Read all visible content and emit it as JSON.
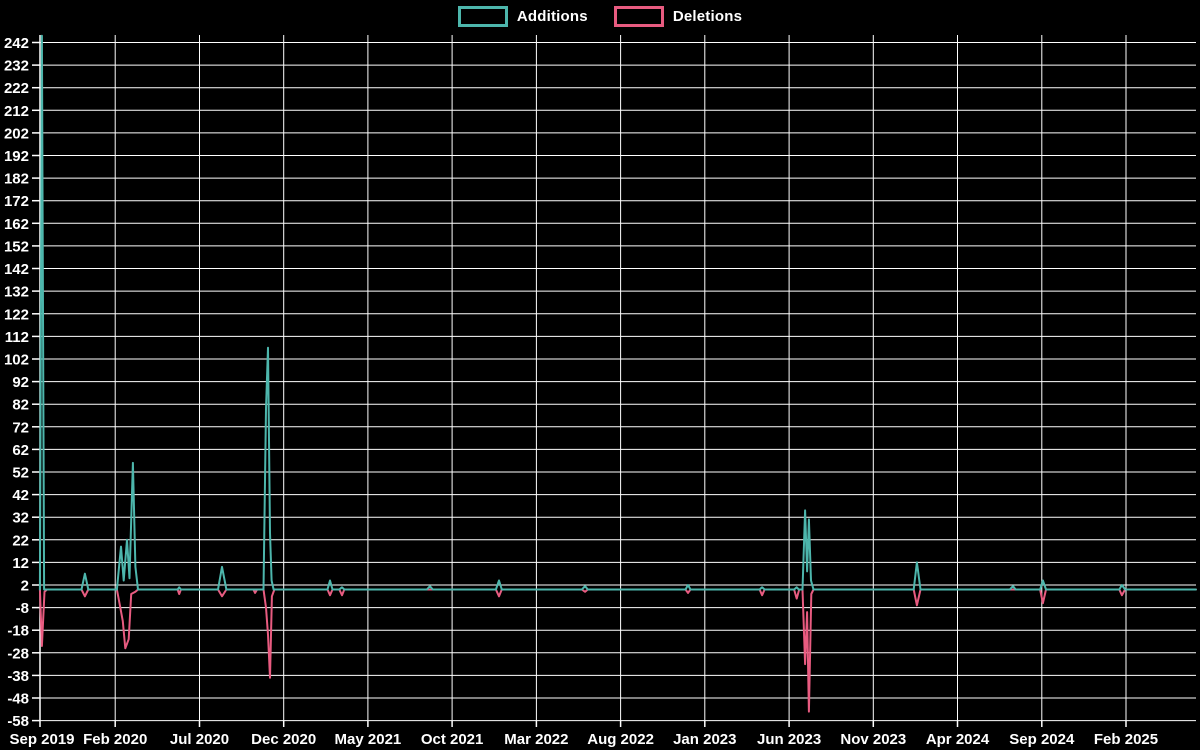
{
  "chart_data": {
    "type": "line",
    "title": "",
    "legend": [
      {
        "label": "Additions",
        "color": "#4db6ac"
      },
      {
        "label": "Deletions",
        "color": "#e85b80"
      }
    ],
    "colors": {
      "background": "#000000",
      "grid": "#ffffff",
      "text": "#ffffff",
      "additions": "#4db6ac",
      "deletions": "#e85b80"
    },
    "grid": true,
    "legend_position": "top-center",
    "ylim": [
      -58,
      245
    ],
    "y_ticks": [
      242,
      232,
      222,
      212,
      202,
      192,
      182,
      172,
      162,
      152,
      142,
      132,
      122,
      112,
      102,
      92,
      82,
      72,
      62,
      52,
      42,
      32,
      22,
      12,
      2,
      -8,
      -18,
      -28,
      -38,
      -48,
      -58
    ],
    "x_unit": "months_since_first_tick",
    "x_tick_interval_months": 5,
    "x_tick_labels": [
      "Sep 2019",
      "Feb 2020",
      "Jul 2020",
      "Dec 2020",
      "May 2021",
      "Oct 2021",
      "Mar 2022",
      "Aug 2022",
      "Jan 2023",
      "Jun 2023",
      "Nov 2023",
      "Apr 2024",
      "Sep 2024",
      "Feb 2025"
    ],
    "series": [
      {
        "name": "Additions",
        "color": "#4db6ac",
        "points": [
          [
            0.53,
            0
          ],
          [
            0.65,
            245
          ],
          [
            0.78,
            0
          ],
          [
            3.0,
            0
          ],
          [
            3.2,
            7
          ],
          [
            3.4,
            0
          ],
          [
            5.1,
            0
          ],
          [
            5.34,
            19
          ],
          [
            5.5,
            4
          ],
          [
            5.7,
            22
          ],
          [
            5.85,
            5
          ],
          [
            6.05,
            56
          ],
          [
            6.2,
            10
          ],
          [
            6.35,
            0
          ],
          [
            8.7,
            0
          ],
          [
            8.8,
            1
          ],
          [
            8.9,
            0
          ],
          [
            11.1,
            0
          ],
          [
            11.34,
            10
          ],
          [
            11.6,
            0
          ],
          [
            13.8,
            0
          ],
          [
            13.95,
            80
          ],
          [
            14.07,
            107
          ],
          [
            14.19,
            25
          ],
          [
            14.28,
            4
          ],
          [
            14.4,
            0
          ],
          [
            17.6,
            0
          ],
          [
            17.75,
            4
          ],
          [
            17.9,
            0
          ],
          [
            18.3,
            0
          ],
          [
            18.46,
            1
          ],
          [
            18.6,
            0
          ],
          [
            23.5,
            0
          ],
          [
            23.68,
            1.5
          ],
          [
            23.85,
            0
          ],
          [
            27.6,
            0
          ],
          [
            27.78,
            4
          ],
          [
            27.95,
            0
          ],
          [
            32.7,
            0
          ],
          [
            32.89,
            1.5
          ],
          [
            33.05,
            0
          ],
          [
            38.85,
            0
          ],
          [
            39.0,
            2
          ],
          [
            39.15,
            0
          ],
          [
            43.25,
            0
          ],
          [
            43.4,
            1
          ],
          [
            43.55,
            0
          ],
          [
            45.3,
            0
          ],
          [
            45.45,
            1
          ],
          [
            45.58,
            0
          ],
          [
            45.8,
            0
          ],
          [
            45.95,
            35
          ],
          [
            46.07,
            8
          ],
          [
            46.18,
            31
          ],
          [
            46.3,
            4
          ],
          [
            46.45,
            0
          ],
          [
            52.4,
            0
          ],
          [
            52.59,
            12
          ],
          [
            52.8,
            0
          ],
          [
            58.1,
            0
          ],
          [
            58.29,
            1.5
          ],
          [
            58.45,
            0
          ],
          [
            59.9,
            0
          ],
          [
            60.07,
            4
          ],
          [
            60.25,
            0
          ],
          [
            64.6,
            0
          ],
          [
            64.76,
            2
          ],
          [
            64.95,
            0
          ],
          [
            69.15,
            0
          ]
        ]
      },
      {
        "name": "Deletions",
        "color": "#e85b80",
        "points": [
          [
            0.53,
            0
          ],
          [
            0.65,
            -25
          ],
          [
            0.8,
            -1
          ],
          [
            0.95,
            0
          ],
          [
            3.0,
            0
          ],
          [
            3.2,
            -3
          ],
          [
            3.4,
            0
          ],
          [
            5.1,
            0
          ],
          [
            5.3,
            -8
          ],
          [
            5.45,
            -14
          ],
          [
            5.6,
            -26
          ],
          [
            5.8,
            -22
          ],
          [
            5.95,
            -2
          ],
          [
            6.2,
            -1
          ],
          [
            6.35,
            0
          ],
          [
            8.7,
            0
          ],
          [
            8.8,
            -2
          ],
          [
            8.9,
            0
          ],
          [
            11.1,
            0
          ],
          [
            11.34,
            -3
          ],
          [
            11.6,
            0
          ],
          [
            13.2,
            0
          ],
          [
            13.3,
            -1.5
          ],
          [
            13.42,
            0
          ],
          [
            13.8,
            0
          ],
          [
            13.95,
            -8
          ],
          [
            14.07,
            -20
          ],
          [
            14.19,
            -39
          ],
          [
            14.3,
            -3
          ],
          [
            14.45,
            0
          ],
          [
            17.6,
            0
          ],
          [
            17.75,
            -2.5
          ],
          [
            17.9,
            0
          ],
          [
            18.3,
            0
          ],
          [
            18.46,
            -2.5
          ],
          [
            18.6,
            0
          ],
          [
            27.6,
            0
          ],
          [
            27.78,
            -3
          ],
          [
            27.95,
            0
          ],
          [
            32.7,
            0
          ],
          [
            32.89,
            -1
          ],
          [
            33.05,
            0
          ],
          [
            38.85,
            0
          ],
          [
            39.0,
            -1.5
          ],
          [
            39.15,
            0
          ],
          [
            43.25,
            0
          ],
          [
            43.4,
            -2.5
          ],
          [
            43.55,
            0
          ],
          [
            45.3,
            0
          ],
          [
            45.45,
            -4
          ],
          [
            45.6,
            0
          ],
          [
            45.8,
            0
          ],
          [
            45.95,
            -33
          ],
          [
            46.07,
            -10
          ],
          [
            46.18,
            -54
          ],
          [
            46.32,
            -2
          ],
          [
            46.45,
            0
          ],
          [
            52.4,
            0
          ],
          [
            52.59,
            -7
          ],
          [
            52.8,
            0
          ],
          [
            59.9,
            0
          ],
          [
            60.07,
            -6
          ],
          [
            60.25,
            0
          ],
          [
            64.6,
            0
          ],
          [
            64.76,
            -2.5
          ],
          [
            64.95,
            0
          ],
          [
            69.15,
            0
          ]
        ]
      }
    ]
  }
}
